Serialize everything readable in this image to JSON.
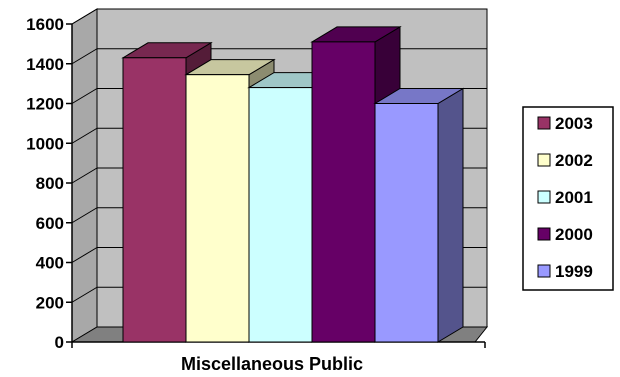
{
  "chart_data": {
    "type": "bar",
    "categories": [
      "Miscellaneous Public"
    ],
    "series": [
      {
        "name": "2003",
        "values": [
          1430
        ],
        "color": "#993366"
      },
      {
        "name": "2002",
        "values": [
          1345
        ],
        "color": "#FFFFCC"
      },
      {
        "name": "2001",
        "values": [
          1280
        ],
        "color": "#CCFFFF"
      },
      {
        "name": "2000",
        "values": [
          1510
        ],
        "color": "#660066"
      },
      {
        "name": "1999",
        "values": [
          1200
        ],
        "color": "#9999FF"
      }
    ],
    "xlabel": "Miscellaneous Public",
    "ylabel": "",
    "ylim": [
      0,
      1600
    ],
    "yticks": [
      "0",
      "200",
      "400",
      "600",
      "800",
      "1000",
      "1200",
      "1400",
      "1600"
    ],
    "grid": true,
    "legend_position": "right",
    "three_d": true,
    "wall_color": "#C0C0C0"
  }
}
